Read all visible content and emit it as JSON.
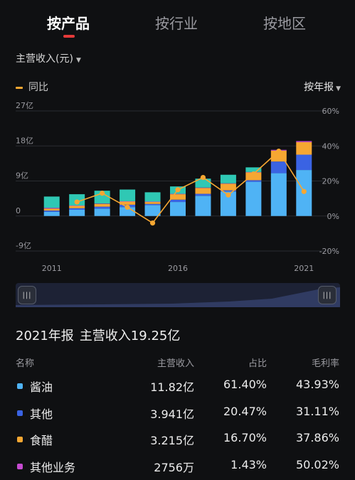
{
  "tabs": [
    {
      "label": "按产品",
      "active": true
    },
    {
      "label": "按行业",
      "active": false
    },
    {
      "label": "按地区",
      "active": false
    }
  ],
  "metric_selector": {
    "label": "主营收入(元)"
  },
  "legend": {
    "line_label": "同比"
  },
  "period_selector": {
    "label": "按年报"
  },
  "colors": {
    "accent": "#e53a3a",
    "line": "#f6a732",
    "soy_sauce": "#4fb3f5",
    "other": "#3a63e3",
    "vinegar": "#f6a732",
    "other_business": "#c64bd1",
    "other_teal": "#2fc8b4"
  },
  "chart_data": {
    "type": "bar",
    "stacked": true,
    "x_tick_labels": [
      "2011",
      "2016",
      "2021"
    ],
    "left_axis": {
      "ticks": [
        "27亿",
        "18亿",
        "9亿",
        "0",
        "-9亿"
      ],
      "ylim": [
        -9,
        27
      ],
      "unit": "亿"
    },
    "right_axis": {
      "ticks": [
        "60%",
        "40%",
        "20%",
        "0%",
        "-20%"
      ],
      "ylim": [
        -20,
        60
      ]
    },
    "categories": [
      "2011",
      "2012",
      "2013",
      "2014",
      "2015",
      "2016",
      "2017",
      "2018",
      "2019",
      "2020",
      "2021"
    ],
    "series": [
      {
        "name": "酱油",
        "color": "#4fb3f5",
        "values": [
          1.1,
          1.6,
          1.9,
          2.3,
          2.8,
          3.6,
          5.2,
          6.3,
          8.8,
          11.0,
          11.82
        ]
      },
      {
        "name": "其他",
        "color": "#3a63e3",
        "values": [
          0.3,
          0.4,
          0.5,
          0.6,
          0.3,
          0.6,
          0.5,
          0.3,
          0.4,
          3.0,
          3.941
        ]
      },
      {
        "name": "食醋",
        "color": "#f6a732",
        "values": [
          0.5,
          0.6,
          0.7,
          0.8,
          0.5,
          1.4,
          1.5,
          1.7,
          2.0,
          2.8,
          3.215
        ]
      },
      {
        "name": "其他业务",
        "color": "#c64bd1",
        "values": [
          0.2,
          0.1,
          0.1,
          0.1,
          0.1,
          0.1,
          0.1,
          0.1,
          0.1,
          0.2,
          0.2756
        ]
      },
      {
        "color": "#2fc8b4",
        "values": [
          2.9,
          2.9,
          3.3,
          3.0,
          2.4,
          1.9,
          2.3,
          2.2,
          1.2,
          0.0,
          0.0
        ]
      }
    ],
    "line_series": {
      "name": "同比",
      "axis": "right",
      "values": [
        null,
        8,
        13,
        5,
        -4,
        15,
        22,
        12,
        24,
        37,
        14
      ]
    }
  },
  "summary": {
    "year_label": "2021年报",
    "text": "主营收入19.25亿"
  },
  "table": {
    "headers": [
      "名称",
      "主营收入",
      "占比",
      "毛利率"
    ],
    "rows": [
      {
        "color": "#4fb3f5",
        "name": "酱油",
        "revenue": "11.82亿",
        "share": "61.40%",
        "margin": "43.93%"
      },
      {
        "color": "#3a63e3",
        "name": "其他",
        "revenue": "3.941亿",
        "share": "20.47%",
        "margin": "31.11%"
      },
      {
        "color": "#f6a732",
        "name": "食醋",
        "revenue": "3.215亿",
        "share": "16.70%",
        "margin": "37.86%"
      },
      {
        "color": "#c64bd1",
        "name": "其他业务",
        "revenue": "2756万",
        "share": "1.43%",
        "margin": "50.02%"
      }
    ]
  }
}
